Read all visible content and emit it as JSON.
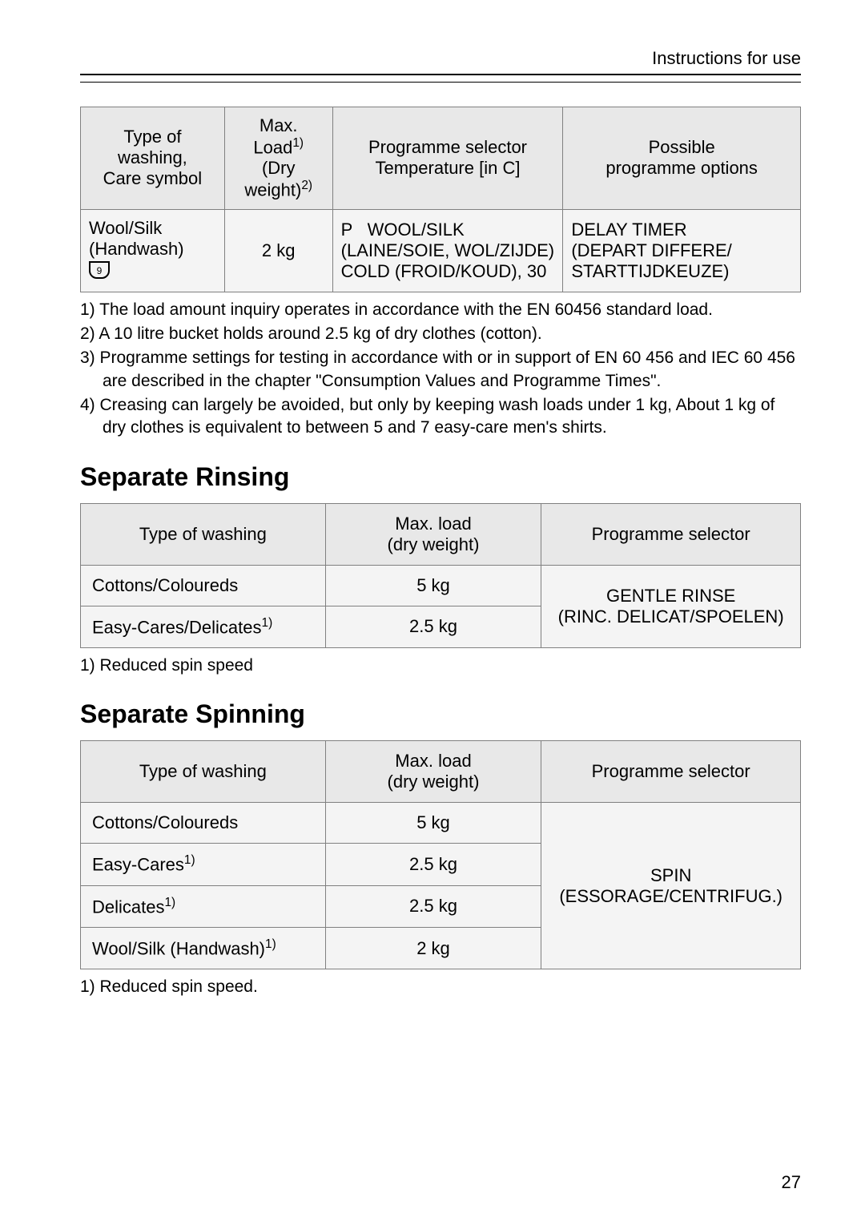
{
  "header": {
    "title": "Instructions for use"
  },
  "table1": {
    "columns": [
      {
        "line1": "Type of washing,",
        "line2": "Care symbol"
      },
      {
        "line1": "Max.  Load",
        "sup1": "1)",
        "line2": "(Dry weight)",
        "sup2": "2)"
      },
      {
        "line1": "Programme selector",
        "line2": "Temperature [in  C]"
      },
      {
        "line1": "Possible",
        "line2": "programme options"
      }
    ],
    "row": {
      "type_l1": "Wool/Silk",
      "type_l2": "(Handwash)",
      "load": "2 kg",
      "prog_l1_prefix": "P",
      "prog_l1": "WOOL/SILK",
      "prog_l2": "(LAINE/SOIE, WOL/ZIJDE)",
      "prog_l3": "COLD (FROID/KOUD), 30",
      "opt_l1": "DELAY TIMER",
      "opt_l2": "(DEPART DIFFERE/",
      "opt_l3": "STARTTIJDKEUZE)"
    }
  },
  "footnotes1": [
    "1) The load amount inquiry operates in accordance with the EN 60456 standard load.",
    "2) A 10 litre bucket holds around 2.5 kg of dry clothes (cotton).",
    "3) Programme settings for testing in accordance with or in support of EN 60 456 and IEC 60 456 are described in the chapter \"Consumption Values and Programme Times\".",
    "4) Creasing can largely be avoided, but only by keeping wash loads under 1 kg, About 1 kg of dry clothes is equivalent to between 5 and 7 easy-care men's shirts."
  ],
  "section_rinsing": {
    "title": "Separate Rinsing",
    "columns": [
      "Type of washing",
      "Max. load\n(dry weight)",
      "Programme selector"
    ],
    "rows": [
      {
        "type": "Cottons/Coloureds",
        "load": "5 kg"
      },
      {
        "type": "Easy-Cares/Delicates",
        "type_sup": "1)",
        "load": "2.5 kg"
      }
    ],
    "selector_l1": "GENTLE RINSE",
    "selector_l2": "(RINC. DELICAT/SPOELEN)",
    "footnote": "1) Reduced spin speed"
  },
  "section_spinning": {
    "title": "Separate Spinning",
    "columns": [
      "Type of washing",
      "Max. load\n(dry weight)",
      "Programme selector"
    ],
    "rows": [
      {
        "type": "Cottons/Coloureds",
        "load": "5 kg"
      },
      {
        "type": "Easy-Cares",
        "type_sup": "1)",
        "load": "2.5 kg"
      },
      {
        "type": "Delicates",
        "type_sup": "1)",
        "load": "2.5 kg"
      },
      {
        "type": "Wool/Silk (Handwash)",
        "type_sup": "1)",
        "load": "2 kg"
      }
    ],
    "selector_l1": "SPIN",
    "selector_l2": "(ESSORAGE/CENTRIFUG.)",
    "footnote": "1) Reduced spin speed."
  },
  "page_number": "27"
}
